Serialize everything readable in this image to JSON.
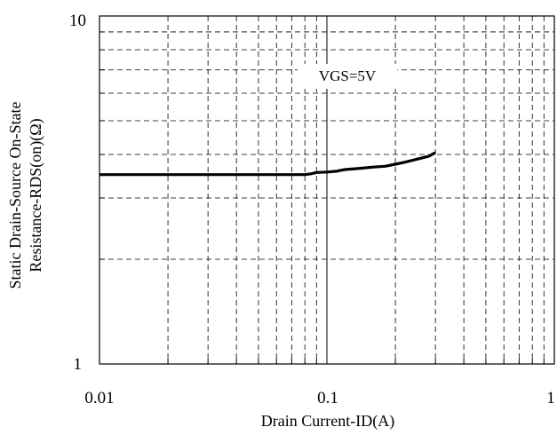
{
  "chart_data": {
    "type": "line",
    "x_scale": "log",
    "y_scale": "log",
    "xlim": [
      0.01,
      1
    ],
    "ylim": [
      1,
      10
    ],
    "grid": true,
    "xlabel": "Drain Current-ID(A)",
    "ylabel_line1": "Static Drain-Source On-State",
    "ylabel_line2": "Resistance-RDS(on)(Ω)",
    "x_tick_labels": [
      "0.01",
      "0.1",
      "1"
    ],
    "y_tick_labels": [
      "1",
      "10"
    ],
    "annotation": "VGS=5V",
    "colors": {
      "line": "#000000",
      "grid": "#000000",
      "background": "#ffffff"
    },
    "series": [
      {
        "x": [
          0.01,
          0.02,
          0.04,
          0.06,
          0.08,
          0.085,
          0.09,
          0.1,
          0.11,
          0.12,
          0.14,
          0.16,
          0.18,
          0.2,
          0.22,
          0.25,
          0.28,
          0.3
        ],
        "y": [
          3.5,
          3.5,
          3.5,
          3.5,
          3.5,
          3.52,
          3.55,
          3.56,
          3.58,
          3.62,
          3.65,
          3.68,
          3.7,
          3.75,
          3.8,
          3.88,
          3.95,
          4.05
        ]
      }
    ]
  }
}
